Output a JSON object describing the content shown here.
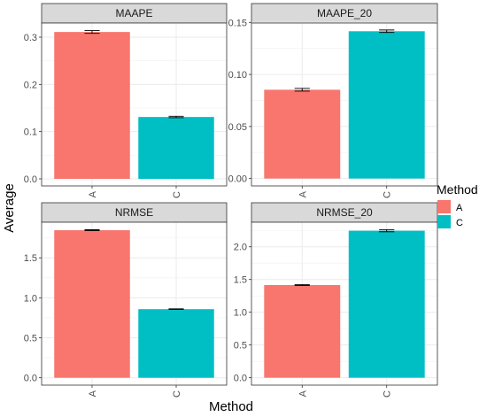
{
  "chart_data": {
    "type": "bar",
    "xlabel": "Method",
    "ylabel": "Average",
    "legend": {
      "title": "Method",
      "placement": "right",
      "entries": [
        {
          "label": "A",
          "color": "#F8766D"
        },
        {
          "label": "C",
          "color": "#00BFC4"
        }
      ]
    },
    "grid": true,
    "facets": [
      {
        "title": "MAAPE",
        "categories": [
          "A",
          "C"
        ],
        "values": [
          0.311,
          0.131
        ],
        "errors": [
          0.003,
          0.0015
        ],
        "ylim": [
          -0.015,
          0.33
        ],
        "yticks": [
          0.0,
          0.1,
          0.2,
          0.3
        ],
        "yticklabels": [
          "0.0",
          "0.1",
          "0.2",
          "0.3"
        ]
      },
      {
        "title": "MAAPE_20",
        "categories": [
          "A",
          "C"
        ],
        "values": [
          0.0853,
          0.1415
        ],
        "errors": [
          0.0013,
          0.0012
        ],
        "ylim": [
          -0.0071,
          0.1494
        ],
        "yticks": [
          0.0,
          0.05,
          0.1,
          0.15
        ],
        "yticklabels": [
          "0.00",
          "0.05",
          "0.10",
          "0.15"
        ]
      },
      {
        "title": "NRMSE",
        "categories": [
          "A",
          "C"
        ],
        "values": [
          1.845,
          0.858
        ],
        "errors": [
          0.006,
          0.004
        ],
        "ylim": [
          -0.092,
          1.945
        ],
        "yticks": [
          0.0,
          0.5,
          1.0,
          1.5
        ],
        "yticklabels": [
          "0.0",
          "0.5",
          "1.0",
          "1.5"
        ]
      },
      {
        "title": "NRMSE_20",
        "categories": [
          "A",
          "C"
        ],
        "values": [
          1.415,
          2.245
        ],
        "errors": [
          0.008,
          0.016
        ],
        "ylim": [
          -0.113,
          2.375
        ],
        "yticks": [
          0.0,
          0.5,
          1.0,
          1.5,
          2.0
        ],
        "yticklabels": [
          "0.0",
          "0.5",
          "1.0",
          "1.5",
          "2.0"
        ]
      }
    ]
  }
}
